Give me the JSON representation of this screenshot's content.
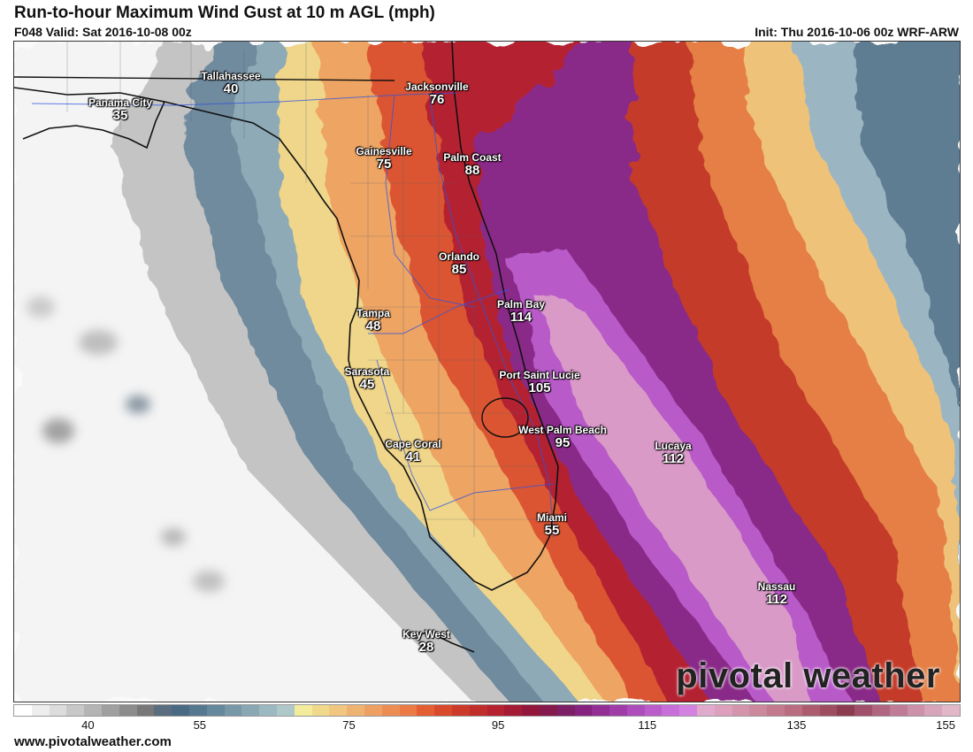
{
  "header": {
    "title": "Run-to-hour Maximum Wind Gust at 10 m AGL (mph)",
    "valid": "F048 Valid: Sat 2016-10-08 00z",
    "init": "Init: Thu 2016-10-06 00z WRF-ARW"
  },
  "cities": [
    {
      "name": "Tallahassee",
      "value": "40"
    },
    {
      "name": "Panama City",
      "value": "35"
    },
    {
      "name": "Jacksonville",
      "value": "76"
    },
    {
      "name": "Gainesville",
      "value": "75"
    },
    {
      "name": "Palm Coast",
      "value": "88"
    },
    {
      "name": "Orlando",
      "value": "85"
    },
    {
      "name": "Palm Bay",
      "value": "114"
    },
    {
      "name": "Tampa",
      "value": "48"
    },
    {
      "name": "Sarasota",
      "value": "45"
    },
    {
      "name": "Port Saint Lucie",
      "value": "105"
    },
    {
      "name": "West Palm Beach",
      "value": "95"
    },
    {
      "name": "Lucaya",
      "value": "112"
    },
    {
      "name": "Cape Coral",
      "value": "41"
    },
    {
      "name": "Miami",
      "value": "55"
    },
    {
      "name": "Nassau",
      "value": "112"
    },
    {
      "name": "Key West",
      "value": "28"
    }
  ],
  "legend": {
    "ticks": [
      "40",
      "55",
      "75",
      "95",
      "115",
      "135",
      "155"
    ],
    "colors": [
      "#ffffff",
      "#ededed",
      "#dcdcdc",
      "#c8c8c8",
      "#b4b4b4",
      "#a0a0a0",
      "#8c8c8c",
      "#787878",
      "#5a6e80",
      "#4a6a84",
      "#56788f",
      "#66889c",
      "#7898a8",
      "#8aa8b4",
      "#9cb8c0",
      "#aec8ca",
      "#f2ec9c",
      "#f1d98c",
      "#f0c680",
      "#efb371",
      "#eda062",
      "#ec8d53",
      "#eb7a44",
      "#e35f33",
      "#d84a2b",
      "#cc3b2a",
      "#c02e2c",
      "#b4232f",
      "#a41b35",
      "#93163c",
      "#851a4c",
      "#7c1f66",
      "#85237f",
      "#922e94",
      "#9f3ca8",
      "#ad4cbb",
      "#bb5ccb",
      "#c86ed8",
      "#d482e1",
      "#e0aacc",
      "#dca0bc",
      "#d494ac",
      "#cc889c",
      "#c47a8e",
      "#ba6c80",
      "#ad5c70",
      "#9e4c60",
      "#8c3c50",
      "#a0506a",
      "#b06680",
      "#c07c96",
      "#cc90a8",
      "#d8a4ba",
      "#e2b8c8"
    ],
    "website": "www.pivotalweather.com"
  },
  "brand": "pivotal weather"
}
